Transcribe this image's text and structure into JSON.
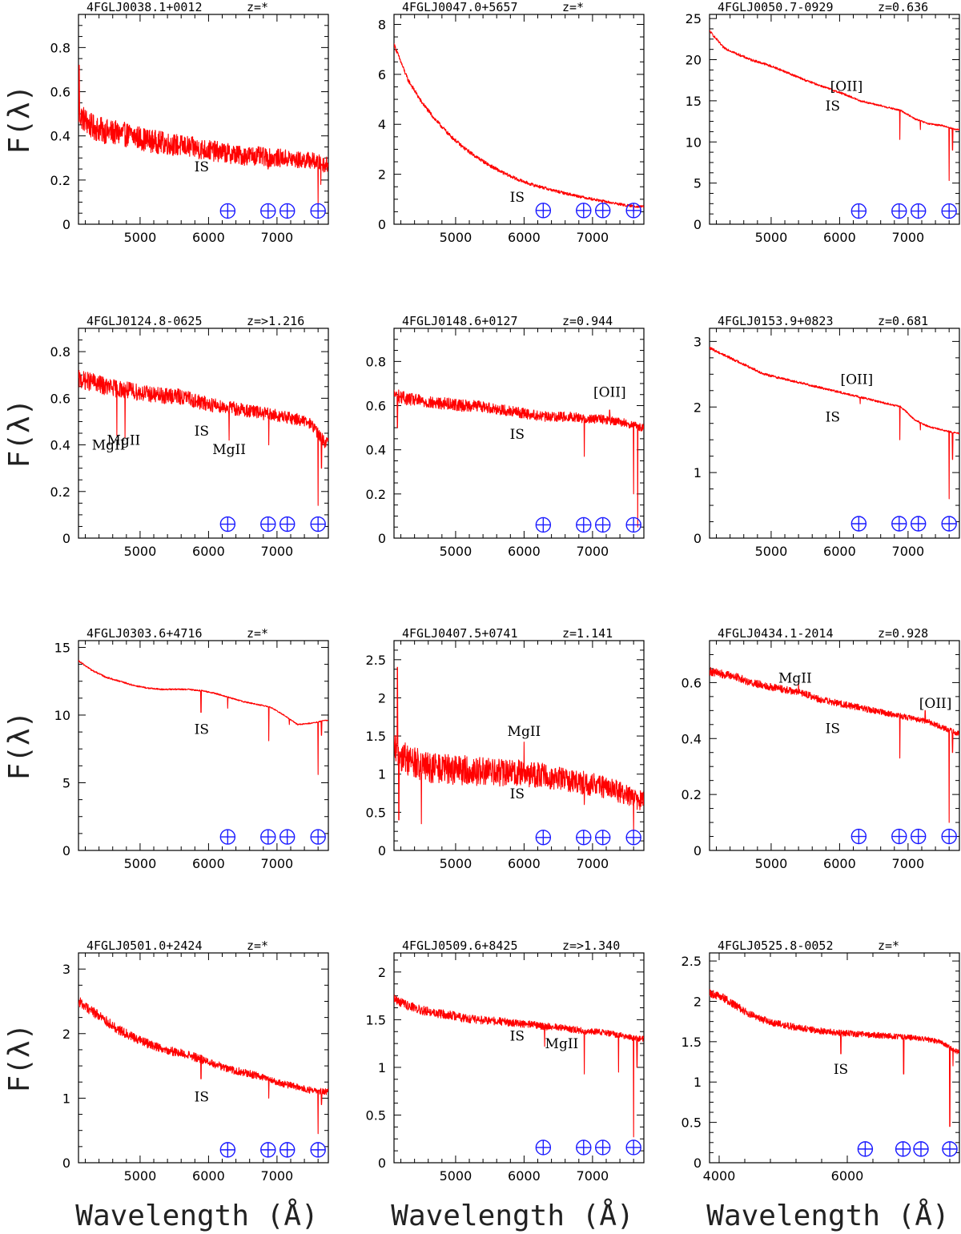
{
  "axis_labels": {
    "y": "F(λ)",
    "x": "Wavelength (Å)"
  },
  "colors": {
    "spectrum": "#ff0000",
    "telluric": "#1a1aff",
    "axes": "#000000"
  },
  "telluric_symbol": "⊕",
  "chart_data": [
    {
      "type": "line",
      "source": "4FGLJ0038.1+0012",
      "redshift": "z=*",
      "xlim": [
        4100,
        7750
      ],
      "ylim": [
        0,
        0.95
      ],
      "xticks": [
        5000,
        6000,
        7000
      ],
      "yticks": [
        0,
        0.2,
        0.4,
        0.6,
        0.8
      ],
      "x": [
        4100,
        4300,
        4500,
        4700,
        4900,
        5100,
        5300,
        5500,
        5700,
        5900,
        6100,
        6300,
        6500,
        6700,
        6900,
        7100,
        7300,
        7500,
        7700
      ],
      "y": [
        0.5,
        0.44,
        0.42,
        0.41,
        0.4,
        0.38,
        0.37,
        0.36,
        0.35,
        0.34,
        0.33,
        0.32,
        0.31,
        0.31,
        0.3,
        0.3,
        0.29,
        0.29,
        0.27
      ],
      "noise": 0.06,
      "spikes": [
        [
          4110,
          0.72
        ],
        [
          6870,
          0.25
        ],
        [
          7600,
          0.09
        ],
        [
          7640,
          0.18
        ]
      ],
      "annotations": [
        {
          "text": "IS",
          "x": 5900,
          "y": 0.24
        }
      ],
      "telluric_x": [
        6280,
        6870,
        7150,
        7600
      ],
      "telluric_y": 0.06
    },
    {
      "type": "line",
      "source": "4FGLJ0047.0+5657",
      "redshift": "z=*",
      "xlim": [
        4100,
        7750
      ],
      "ylim": [
        0,
        8.4
      ],
      "xticks": [
        5000,
        6000,
        7000
      ],
      "yticks": [
        0,
        2,
        4,
        6,
        8
      ],
      "x": [
        4100,
        4300,
        4500,
        4700,
        4900,
        5100,
        5300,
        5500,
        5700,
        5900,
        6100,
        6300,
        6500,
        6700,
        6900,
        7100,
        7300,
        7500,
        7700
      ],
      "y": [
        7.2,
        5.8,
        4.9,
        4.2,
        3.6,
        3.1,
        2.7,
        2.35,
        2.05,
        1.8,
        1.6,
        1.45,
        1.3,
        1.18,
        1.06,
        0.95,
        0.85,
        0.75,
        0.7
      ],
      "noise": 0.08,
      "spikes": [
        [
          7600,
          0.45
        ]
      ],
      "annotations": [
        {
          "text": "IS",
          "x": 5900,
          "y": 0.9
        }
      ],
      "telluric_x": [
        6280,
        6870,
        7150,
        7600
      ],
      "telluric_y": 0.55
    },
    {
      "type": "line",
      "source": "4FGLJ0050.7-0929",
      "redshift": "z=0.636",
      "xlim": [
        4100,
        7750
      ],
      "ylim": [
        0,
        25.5
      ],
      "xticks": [
        5000,
        6000,
        7000
      ],
      "yticks": [
        0,
        5,
        10,
        15,
        20,
        25
      ],
      "x": [
        4100,
        4300,
        4500,
        4700,
        4900,
        5100,
        5300,
        5500,
        5700,
        5900,
        6100,
        6300,
        6500,
        6700,
        6900,
        7100,
        7300,
        7500,
        7700
      ],
      "y": [
        23.5,
        21.5,
        20.7,
        20.0,
        19.5,
        18.9,
        18.2,
        17.5,
        16.9,
        16.3,
        15.7,
        15.0,
        14.6,
        14.2,
        13.8,
        12.8,
        12.2,
        12.0,
        11.5
      ],
      "noise": 0.15,
      "spikes": [
        [
          6880,
          10.3
        ],
        [
          7180,
          11.5
        ],
        [
          7600,
          5.3
        ],
        [
          7650,
          9.0
        ]
      ],
      "annotations": [
        {
          "text": "[OII]",
          "x": 6100,
          "y": 16.2
        },
        {
          "text": "IS",
          "x": 5900,
          "y": 13.8
        }
      ],
      "telluric_x": [
        6280,
        6870,
        7150,
        7600
      ],
      "telluric_y": 1.6
    },
    {
      "type": "line",
      "source": "4FGLJ0124.8-0625",
      "redshift": "z=>1.216",
      "xlim": [
        4100,
        7750
      ],
      "ylim": [
        0,
        0.9
      ],
      "xticks": [
        5000,
        6000,
        7000
      ],
      "yticks": [
        0,
        0.2,
        0.4,
        0.6,
        0.8
      ],
      "x": [
        4100,
        4300,
        4500,
        4700,
        4900,
        5100,
        5300,
        5500,
        5700,
        5900,
        6100,
        6300,
        6500,
        6700,
        6900,
        7100,
        7300,
        7500,
        7700
      ],
      "y": [
        0.68,
        0.67,
        0.65,
        0.64,
        0.63,
        0.62,
        0.61,
        0.61,
        0.6,
        0.58,
        0.57,
        0.56,
        0.55,
        0.54,
        0.53,
        0.52,
        0.51,
        0.49,
        0.41
      ],
      "noise": 0.04,
      "spikes": [
        [
          4660,
          0.44
        ],
        [
          4780,
          0.43
        ],
        [
          6300,
          0.42
        ],
        [
          6880,
          0.4
        ],
        [
          7600,
          0.14
        ],
        [
          7650,
          0.3
        ]
      ],
      "annotations": [
        {
          "text": "MgII",
          "x": 4540,
          "y": 0.38
        },
        {
          "text": "MgII",
          "x": 4760,
          "y": 0.4
        },
        {
          "text": "IS",
          "x": 5900,
          "y": 0.44
        },
        {
          "text": "MgII",
          "x": 6300,
          "y": 0.36
        }
      ],
      "telluric_x": [
        6280,
        6870,
        7150,
        7600
      ],
      "telluric_y": 0.06
    },
    {
      "type": "line",
      "source": "4FGLJ0148.6+0127",
      "redshift": "z=0.944",
      "xlim": [
        4100,
        7750
      ],
      "ylim": [
        0,
        0.95
      ],
      "xticks": [
        5000,
        6000,
        7000
      ],
      "yticks": [
        0,
        0.2,
        0.4,
        0.6,
        0.8
      ],
      "x": [
        4100,
        4300,
        4500,
        4700,
        4900,
        5100,
        5300,
        5500,
        5700,
        5900,
        6100,
        6300,
        6500,
        6700,
        6900,
        7100,
        7300,
        7500,
        7700
      ],
      "y": [
        0.65,
        0.63,
        0.62,
        0.61,
        0.61,
        0.6,
        0.6,
        0.59,
        0.58,
        0.57,
        0.56,
        0.55,
        0.55,
        0.55,
        0.54,
        0.54,
        0.53,
        0.52,
        0.5
      ],
      "noise": 0.03,
      "spikes": [
        [
          4150,
          0.5
        ],
        [
          6880,
          0.37
        ],
        [
          7250,
          0.58
        ],
        [
          7600,
          0.2
        ],
        [
          7660,
          0.05
        ]
      ],
      "annotations": [
        {
          "text": "[OII]",
          "x": 7250,
          "y": 0.64
        },
        {
          "text": "IS",
          "x": 5900,
          "y": 0.45
        }
      ],
      "telluric_x": [
        6280,
        6870,
        7150,
        7600
      ],
      "telluric_y": 0.06
    },
    {
      "type": "line",
      "source": "4FGLJ0153.9+0823",
      "redshift": "z=0.681",
      "xlim": [
        4100,
        7750
      ],
      "ylim": [
        0,
        3.2
      ],
      "xticks": [
        5000,
        6000,
        7000
      ],
      "yticks": [
        0,
        1,
        2,
        3
      ],
      "x": [
        4100,
        4300,
        4500,
        4700,
        4900,
        5100,
        5300,
        5500,
        5700,
        5900,
        6100,
        6300,
        6500,
        6700,
        6900,
        7100,
        7300,
        7500,
        7700
      ],
      "y": [
        2.9,
        2.8,
        2.7,
        2.6,
        2.5,
        2.45,
        2.4,
        2.35,
        2.3,
        2.25,
        2.2,
        2.15,
        2.1,
        2.05,
        2.0,
        1.8,
        1.7,
        1.65,
        1.6
      ],
      "noise": 0.02,
      "spikes": [
        [
          6300,
          2.05
        ],
        [
          6880,
          1.5
        ],
        [
          7180,
          1.65
        ],
        [
          7600,
          0.6
        ],
        [
          7650,
          1.2
        ]
      ],
      "annotations": [
        {
          "text": "[OII]",
          "x": 6250,
          "y": 2.35
        },
        {
          "text": "IS",
          "x": 5900,
          "y": 1.78
        }
      ],
      "telluric_x": [
        6280,
        6870,
        7150,
        7600
      ],
      "telluric_y": 0.22
    },
    {
      "type": "line",
      "source": "4FGLJ0303.6+4716",
      "redshift": "z=*",
      "xlim": [
        4100,
        7750
      ],
      "ylim": [
        0,
        15.5
      ],
      "xticks": [
        5000,
        6000,
        7000
      ],
      "yticks": [
        0,
        5,
        10,
        15
      ],
      "x": [
        4100,
        4300,
        4500,
        4700,
        4900,
        5100,
        5300,
        5500,
        5700,
        5900,
        6100,
        6300,
        6500,
        6700,
        6900,
        7100,
        7300,
        7500,
        7700
      ],
      "y": [
        14.0,
        13.3,
        12.8,
        12.5,
        12.2,
        12.0,
        11.9,
        11.9,
        11.9,
        11.8,
        11.6,
        11.3,
        11.0,
        10.8,
        10.6,
        10.0,
        9.3,
        9.4,
        9.6
      ],
      "noise": 0.06,
      "spikes": [
        [
          5890,
          10.2
        ],
        [
          6280,
          10.5
        ],
        [
          6880,
          8.1
        ],
        [
          7180,
          9.3
        ],
        [
          7600,
          5.6
        ],
        [
          7650,
          8.5
        ]
      ],
      "annotations": [
        {
          "text": "IS",
          "x": 5900,
          "y": 8.6
        }
      ],
      "telluric_x": [
        6280,
        6870,
        7150,
        7600
      ],
      "telluric_y": 1.0
    },
    {
      "type": "line",
      "source": "4FGLJ0407.5+0741",
      "redshift": "z=1.141",
      "xlim": [
        4100,
        7750
      ],
      "ylim": [
        0,
        2.75
      ],
      "xticks": [
        5000,
        6000,
        7000
      ],
      "yticks": [
        0,
        0.5,
        1,
        1.5,
        2,
        2.5
      ],
      "x": [
        4100,
        4300,
        4500,
        4700,
        4900,
        5100,
        5300,
        5500,
        5700,
        5900,
        6100,
        6300,
        6500,
        6700,
        6900,
        7100,
        7300,
        7500,
        7700
      ],
      "y": [
        1.3,
        1.2,
        1.1,
        1.08,
        1.06,
        1.05,
        1.04,
        1.03,
        1.02,
        1.02,
        1.0,
        0.98,
        0.95,
        0.92,
        0.88,
        0.85,
        0.8,
        0.72,
        0.65
      ],
      "noise": 0.22,
      "spikes": [
        [
          4150,
          2.4
        ],
        [
          4170,
          0.4
        ],
        [
          4500,
          0.35
        ],
        [
          6000,
          1.42
        ],
        [
          6880,
          0.6
        ],
        [
          7600,
          0.25
        ]
      ],
      "annotations": [
        {
          "text": "MgII",
          "x": 6000,
          "y": 1.5
        },
        {
          "text": "IS",
          "x": 5900,
          "y": 0.68
        }
      ],
      "telluric_x": [
        6280,
        6870,
        7150,
        7600
      ],
      "telluric_y": 0.17
    },
    {
      "type": "line",
      "source": "4FGLJ0434.1-2014",
      "redshift": "z=0.928",
      "xlim": [
        4100,
        7750
      ],
      "ylim": [
        0,
        0.75
      ],
      "xticks": [
        5000,
        6000,
        7000
      ],
      "yticks": [
        0,
        0.2,
        0.4,
        0.6
      ],
      "x": [
        4100,
        4300,
        4500,
        4700,
        4900,
        5100,
        5300,
        5500,
        5700,
        5900,
        6100,
        6300,
        6500,
        6700,
        6900,
        7100,
        7300,
        7500,
        7700
      ],
      "y": [
        0.64,
        0.63,
        0.62,
        0.6,
        0.59,
        0.58,
        0.57,
        0.56,
        0.54,
        0.53,
        0.52,
        0.51,
        0.5,
        0.49,
        0.48,
        0.47,
        0.46,
        0.44,
        0.42
      ],
      "noise": 0.015,
      "spikes": [
        [
          5400,
          0.6
        ],
        [
          6880,
          0.33
        ],
        [
          7250,
          0.5
        ],
        [
          7600,
          0.1
        ],
        [
          7650,
          0.35
        ]
      ],
      "annotations": [
        {
          "text": "MgII",
          "x": 5350,
          "y": 0.6
        },
        {
          "text": "[OII]",
          "x": 7400,
          "y": 0.51
        },
        {
          "text": "IS",
          "x": 5900,
          "y": 0.42
        }
      ],
      "telluric_x": [
        6280,
        6870,
        7150,
        7600
      ],
      "telluric_y": 0.05
    },
    {
      "type": "line",
      "source": "4FGLJ0501.0+2424",
      "redshift": "z=*",
      "xlim": [
        4100,
        7750
      ],
      "ylim": [
        0,
        3.25
      ],
      "xticks": [
        5000,
        6000,
        7000
      ],
      "yticks": [
        0,
        1,
        2,
        3
      ],
      "x": [
        4100,
        4300,
        4500,
        4700,
        4900,
        5100,
        5300,
        5500,
        5700,
        5900,
        6100,
        6300,
        6500,
        6700,
        6900,
        7100,
        7300,
        7500,
        7700
      ],
      "y": [
        2.5,
        2.35,
        2.2,
        2.05,
        1.95,
        1.85,
        1.78,
        1.72,
        1.67,
        1.6,
        1.52,
        1.45,
        1.4,
        1.35,
        1.28,
        1.22,
        1.17,
        1.12,
        1.1
      ],
      "noise": 0.08,
      "spikes": [
        [
          5890,
          1.3
        ],
        [
          6880,
          1.0
        ],
        [
          7600,
          0.45
        ],
        [
          7650,
          0.9
        ]
      ],
      "annotations": [
        {
          "text": "IS",
          "x": 5900,
          "y": 0.95
        }
      ],
      "telluric_x": [
        6280,
        6870,
        7150,
        7600
      ],
      "telluric_y": 0.2
    },
    {
      "type": "line",
      "source": "4FGLJ0509.6+8425",
      "redshift": "z=>1.340",
      "xlim": [
        4100,
        7750
      ],
      "ylim": [
        0,
        2.2
      ],
      "xticks": [
        5000,
        6000,
        7000
      ],
      "yticks": [
        0,
        0.5,
        1,
        1.5,
        2
      ],
      "x": [
        4100,
        4300,
        4500,
        4700,
        4900,
        5100,
        5300,
        5500,
        5700,
        5900,
        6100,
        6300,
        6500,
        6700,
        6900,
        7100,
        7300,
        7500,
        7700
      ],
      "y": [
        1.72,
        1.65,
        1.6,
        1.57,
        1.55,
        1.52,
        1.5,
        1.49,
        1.48,
        1.46,
        1.45,
        1.43,
        1.42,
        1.4,
        1.38,
        1.37,
        1.35,
        1.32,
        1.3
      ],
      "noise": 0.05,
      "spikes": [
        [
          6300,
          1.22
        ],
        [
          6880,
          0.93
        ],
        [
          7380,
          0.95
        ],
        [
          7600,
          0.27
        ],
        [
          7650,
          1.0
        ]
      ],
      "annotations": [
        {
          "text": "IS",
          "x": 5900,
          "y": 1.28
        },
        {
          "text": "MgII",
          "x": 6550,
          "y": 1.2
        }
      ],
      "telluric_x": [
        6280,
        6870,
        7150,
        7600
      ],
      "telluric_y": 0.16
    },
    {
      "type": "line",
      "source": "4FGLJ0525.8-0052",
      "redshift": "z=*",
      "xlim": [
        3850,
        7750
      ],
      "ylim": [
        0,
        2.6
      ],
      "xticks": [
        4000,
        6000
      ],
      "yticks": [
        0,
        0.5,
        1,
        1.5,
        2,
        2.5
      ],
      "x": [
        3850,
        4050,
        4250,
        4450,
        4650,
        4850,
        5050,
        5250,
        5450,
        5650,
        5850,
        6050,
        6250,
        6450,
        6650,
        6850,
        7050,
        7250,
        7450,
        7700
      ],
      "y": [
        2.1,
        2.05,
        1.95,
        1.85,
        1.78,
        1.73,
        1.7,
        1.67,
        1.65,
        1.63,
        1.61,
        1.6,
        1.59,
        1.58,
        1.57,
        1.56,
        1.55,
        1.53,
        1.5,
        1.38
      ],
      "noise": 0.05,
      "spikes": [
        [
          5900,
          1.35
        ],
        [
          6880,
          1.1
        ],
        [
          7600,
          0.45
        ],
        [
          7650,
          1.2
        ]
      ],
      "annotations": [
        {
          "text": "IS",
          "x": 5900,
          "y": 1.1
        }
      ],
      "telluric_x": [
        6280,
        6870,
        7150,
        7600
      ],
      "telluric_y": 0.17
    }
  ]
}
